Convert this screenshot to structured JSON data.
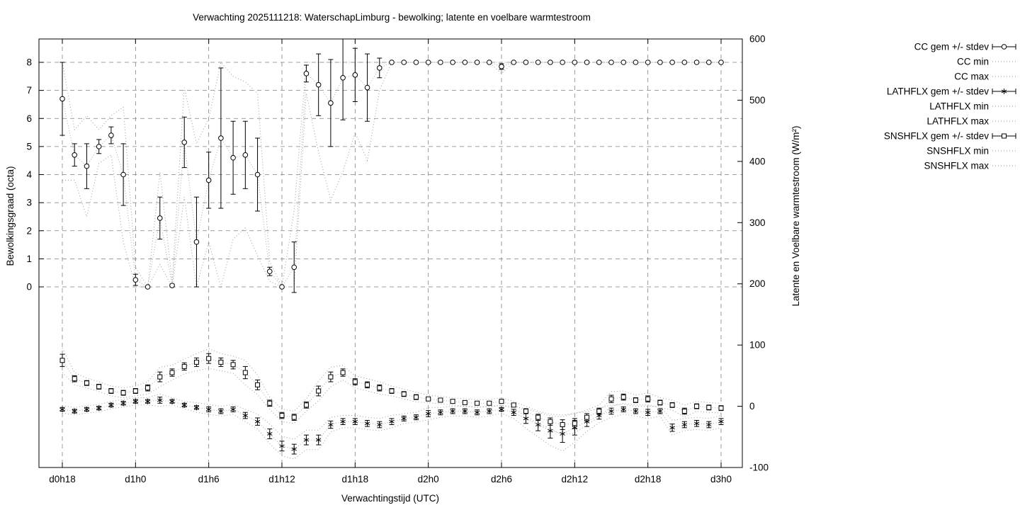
{
  "chart_data": {
    "type": "line",
    "title": "Verwachting 2025111218: WaterschapLimburg - bewolking; latente en voelbare warmtestroom",
    "xlabel": "Verwachtingstijd (UTC)",
    "left_axis": {
      "label": "Bewolkingsgraad (octa)",
      "ticks": [
        0,
        1,
        2,
        3,
        4,
        5,
        6,
        7,
        8
      ],
      "range": [
        0,
        8
      ]
    },
    "right_axis": {
      "label": "Latente en Voelbare warmtestroom (W/m²)",
      "ticks": [
        600,
        500,
        400,
        300,
        200,
        100,
        0,
        -100
      ],
      "range": [
        -100,
        600
      ]
    },
    "grid": true,
    "legend_position": "outside-top-right",
    "x": [
      18,
      19,
      20,
      21,
      22,
      23,
      24,
      25,
      26,
      27,
      28,
      29,
      30,
      31,
      32,
      33,
      34,
      35,
      36,
      37,
      38,
      39,
      40,
      41,
      42,
      43,
      44,
      45,
      46,
      47,
      48,
      49,
      50,
      51,
      52,
      53,
      54,
      55,
      56,
      57,
      58,
      59,
      60,
      61,
      62,
      63,
      64,
      65,
      66,
      67,
      68,
      69,
      70,
      71,
      72
    ],
    "x_ticks": [
      18,
      24,
      30,
      36,
      42,
      48,
      54,
      60,
      66,
      72
    ],
    "x_tick_labels": [
      "d0h18",
      "d1h0",
      "d1h6",
      "d1h12",
      "d1h18",
      "d2h0",
      "d2h6",
      "d2h12",
      "d2h18",
      "d3h0"
    ],
    "legend": [
      {
        "label": "CC gem +/- stdev",
        "type": "errorbar",
        "marker": "circle"
      },
      {
        "label": "CC min",
        "type": "dotted"
      },
      {
        "label": "CC max",
        "type": "dotted"
      },
      {
        "label": "LATHFLX gem +/- stdev",
        "type": "errorbar",
        "marker": "star"
      },
      {
        "label": "LATHFLX min",
        "type": "dotted"
      },
      {
        "label": "LATHFLX max",
        "type": "dotted"
      },
      {
        "label": "SNSHFLX gem +/- stdev",
        "type": "errorbar",
        "marker": "square"
      },
      {
        "label": "SNSHFLX min",
        "type": "dotted"
      },
      {
        "label": "SNSHFLX max",
        "type": "dotted"
      }
    ],
    "series": [
      {
        "name": "cc",
        "axis": "left",
        "marker": "circle",
        "mean": [
          6.7,
          4.7,
          4.3,
          5.0,
          5.4,
          4.0,
          0.25,
          0.0,
          2.45,
          0.05,
          5.15,
          1.6,
          3.8,
          5.3,
          4.6,
          4.7,
          4.0,
          0.55,
          0.0,
          0.7,
          7.6,
          7.2,
          6.55,
          7.45,
          7.55,
          7.1,
          7.8,
          8.0,
          8.0,
          8.0,
          8.0,
          8.0,
          8.0,
          8.0,
          8.0,
          8.0,
          7.85,
          8.0,
          8.0,
          8.0,
          8.0,
          8.0,
          8.0,
          8.0,
          8.0,
          8.0,
          8.0,
          8.0,
          8.0,
          8.0,
          8.0,
          8.0,
          8.0,
          8.0,
          8.0
        ],
        "stdev": [
          1.3,
          0.4,
          0.8,
          0.25,
          0.3,
          1.1,
          0.2,
          0,
          0.75,
          0.05,
          0.9,
          1.6,
          1.0,
          2.5,
          1.3,
          1.2,
          1.3,
          0.15,
          0,
          0.9,
          0.3,
          1.1,
          1.55,
          1.5,
          0.95,
          1.2,
          0.35,
          0,
          0,
          0,
          0,
          0,
          0,
          0,
          0,
          0,
          0.1,
          0,
          0,
          0,
          0,
          0,
          0,
          0,
          0,
          0,
          0,
          0,
          0,
          0,
          0,
          0,
          0,
          0,
          0
        ],
        "min": [
          3.8,
          3.8,
          2.5,
          4.4,
          4.7,
          1.6,
          0,
          0,
          0.8,
          0,
          3.2,
          0,
          1.6,
          0,
          1.7,
          2.1,
          1.1,
          0.2,
          0,
          0,
          6.9,
          4.8,
          3.1,
          4.1,
          5.5,
          4.5,
          7.0,
          8,
          8,
          8,
          8,
          8,
          8,
          8,
          8,
          8,
          7.6,
          8,
          8,
          8,
          8,
          8,
          8,
          8,
          8,
          8,
          8,
          8,
          8,
          8,
          8,
          8,
          8,
          8,
          8
        ],
        "max": [
          8,
          5.6,
          6.1,
          5.6,
          6.1,
          6.4,
          0.7,
          0,
          4.1,
          0.2,
          7.1,
          5.1,
          6.0,
          8,
          7.5,
          7.3,
          6.9,
          0.9,
          0,
          2.7,
          8,
          8,
          8,
          8,
          8,
          8,
          8,
          8,
          8,
          8,
          8,
          8,
          8,
          8,
          8,
          8,
          8,
          8,
          8,
          8,
          8,
          8,
          8,
          8,
          8,
          8,
          8,
          8,
          8,
          8,
          8,
          8,
          8,
          8,
          8
        ]
      },
      {
        "name": "lathflx",
        "axis": "right",
        "marker": "star",
        "mean": [
          -5,
          -8,
          -5,
          -3,
          2,
          5,
          8,
          8,
          10,
          8,
          2,
          -2,
          -5,
          -8,
          -5,
          -15,
          -25,
          -45,
          -65,
          -70,
          -55,
          -55,
          -30,
          -25,
          -25,
          -28,
          -30,
          -25,
          -20,
          -18,
          -12,
          -10,
          -8,
          -8,
          -10,
          -8,
          -5,
          -10,
          -20,
          -30,
          -40,
          -45,
          -35,
          -25,
          -15,
          -8,
          -5,
          -8,
          -10,
          -8,
          -35,
          -30,
          -28,
          -30,
          -25
        ],
        "stdev": [
          3,
          3,
          3,
          3,
          3,
          3,
          3,
          3,
          5,
          3,
          3,
          3,
          4,
          4,
          4,
          5,
          6,
          8,
          8,
          8,
          8,
          8,
          6,
          5,
          5,
          5,
          5,
          5,
          4,
          4,
          5,
          4,
          4,
          4,
          4,
          4,
          3,
          5,
          8,
          10,
          12,
          14,
          12,
          8,
          6,
          5,
          4,
          4,
          5,
          4,
          6,
          5,
          5,
          5,
          5
        ],
        "min": [
          -11,
          -14,
          -11,
          -9,
          -4,
          -1,
          2,
          2,
          0,
          2,
          -4,
          -10,
          -13,
          -16,
          -13,
          -25,
          -37,
          -61,
          -81,
          -86,
          -71,
          -71,
          -42,
          -35,
          -35,
          -38,
          -40,
          -35,
          -28,
          -26,
          -22,
          -18,
          -16,
          -16,
          -18,
          -16,
          -11,
          -20,
          -36,
          -50,
          -64,
          -73,
          -59,
          -41,
          -27,
          -18,
          -13,
          -16,
          -20,
          -16,
          -47,
          -40,
          -38,
          -40,
          -35
        ],
        "max": [
          1,
          -2,
          1,
          3,
          8,
          11,
          14,
          14,
          20,
          14,
          8,
          6,
          3,
          0,
          3,
          -5,
          -13,
          -29,
          -49,
          -54,
          -39,
          -39,
          -18,
          -15,
          -15,
          -18,
          -20,
          -15,
          -12,
          -10,
          -2,
          -2,
          0,
          0,
          -2,
          0,
          1,
          0,
          -4,
          -10,
          -16,
          -17,
          -11,
          -9,
          -3,
          2,
          3,
          0,
          0,
          0,
          -23,
          -20,
          -18,
          -20,
          -15
        ]
      },
      {
        "name": "snshflx",
        "axis": "right",
        "marker": "square",
        "mean": [
          75,
          45,
          38,
          32,
          25,
          22,
          25,
          30,
          48,
          55,
          65,
          72,
          78,
          72,
          68,
          55,
          35,
          5,
          -15,
          -18,
          2,
          25,
          48,
          55,
          40,
          35,
          30,
          25,
          20,
          15,
          12,
          10,
          8,
          6,
          5,
          5,
          8,
          2,
          -8,
          -18,
          -25,
          -30,
          -28,
          -18,
          -8,
          12,
          15,
          10,
          12,
          6,
          2,
          -8,
          0,
          -2,
          -3
        ],
        "stdev": [
          10,
          5,
          4,
          4,
          4,
          4,
          4,
          5,
          8,
          6,
          6,
          7,
          8,
          7,
          7,
          10,
          8,
          5,
          5,
          5,
          5,
          8,
          8,
          6,
          5,
          5,
          5,
          4,
          4,
          4,
          3,
          3,
          3,
          3,
          3,
          3,
          3,
          3,
          4,
          5,
          6,
          8,
          8,
          6,
          5,
          6,
          5,
          4,
          5,
          4,
          4,
          5,
          4,
          4,
          4
        ],
        "min": [
          55,
          35,
          30,
          24,
          17,
          14,
          17,
          20,
          32,
          43,
          53,
          58,
          62,
          58,
          54,
          35,
          19,
          -5,
          -25,
          -28,
          -8,
          9,
          32,
          43,
          30,
          25,
          20,
          17,
          12,
          7,
          6,
          4,
          2,
          0,
          -1,
          -1,
          2,
          -4,
          -16,
          -28,
          -37,
          -46,
          -44,
          -30,
          -18,
          0,
          5,
          2,
          2,
          -2,
          -6,
          -18,
          -8,
          -10,
          -11
        ],
        "max": [
          95,
          55,
          46,
          40,
          33,
          30,
          33,
          40,
          64,
          67,
          77,
          86,
          94,
          86,
          82,
          75,
          51,
          15,
          -5,
          -8,
          12,
          41,
          64,
          67,
          50,
          45,
          40,
          33,
          28,
          23,
          18,
          16,
          14,
          12,
          11,
          11,
          14,
          8,
          0,
          -8,
          -13,
          -14,
          -12,
          -6,
          2,
          24,
          25,
          18,
          22,
          14,
          10,
          2,
          8,
          6,
          5
        ]
      }
    ],
    "colors": {
      "foreground": "#000000",
      "grid": "#7f7f7f",
      "envelope": "#9a9a9a",
      "background": "#ffffff"
    }
  }
}
